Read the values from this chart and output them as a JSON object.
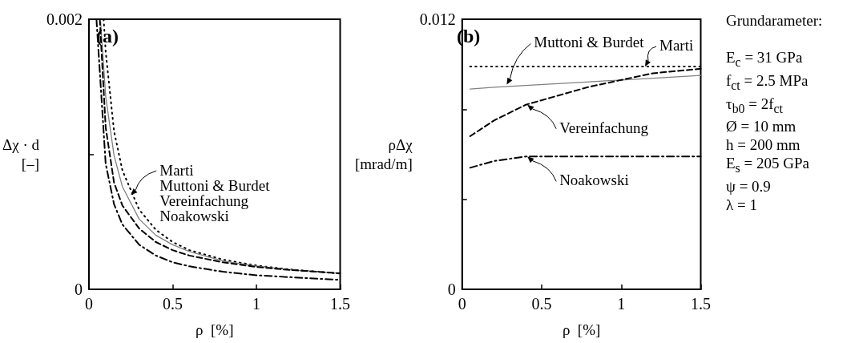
{
  "chart_data": [
    {
      "type": "line",
      "title": "(a)",
      "xlabel": "ρ  [%]",
      "ylabel": "Δχ · d\n[–]",
      "xlim": [
        0,
        1.5
      ],
      "xticks": [
        0,
        0.5,
        1,
        1.5
      ],
      "ylim": [
        0,
        0.002
      ],
      "yticks": [
        0,
        {
          "value": 0.001,
          "label": null
        },
        0.002
      ],
      "grid": false,
      "marker": "none",
      "series": [
        {
          "color": "#000000",
          "line_style": "dotted",
          "x": [
            0.088,
            0.1,
            0.15,
            0.2,
            0.3,
            0.4,
            0.5,
            0.6,
            0.8,
            1.0,
            1.2,
            1.5
          ],
          "values": [
            0.002,
            0.00176,
            0.00117,
            0.00088,
            0.00059,
            0.00044,
            0.00035,
            0.00029,
            0.00022,
            0.000176,
            0.000147,
            0.000117
          ]
        },
        {
          "color": "#808080",
          "line_style": "solid",
          "x": [
            0.07,
            0.1,
            0.15,
            0.2,
            0.3,
            0.4,
            0.5,
            0.6,
            0.8,
            1.0,
            1.2,
            1.5
          ],
          "values": [
            0.00198,
            0.00143,
            0.00099,
            0.00076,
            0.00052,
            0.0004,
            0.00033,
            0.00028,
            0.00021,
            0.000172,
            0.000145,
            0.000118
          ]
        },
        {
          "color": "#000000",
          "line_style": "dashed",
          "x": [
            0.065,
            0.1,
            0.15,
            0.2,
            0.3,
            0.4,
            0.5,
            0.6,
            0.8,
            1.0,
            1.2,
            1.5
          ],
          "values": [
            0.002,
            0.0012,
            0.00079,
            0.00062,
            0.00045,
            0.00035,
            0.00029,
            0.00025,
            0.0002,
            0.000166,
            0.000143,
            0.000119
          ]
        },
        {
          "color": "#000000",
          "line_style": "dashdot",
          "x": [
            0.045,
            0.1,
            0.15,
            0.2,
            0.3,
            0.4,
            0.5,
            0.6,
            0.8,
            1.0,
            1.2,
            1.5
          ],
          "values": [
            0.002,
            0.00093,
            0.00063,
            0.00048,
            0.00033,
            0.00025,
            0.0002,
            0.00017,
            0.00013,
            0.000104,
            9e-05,
            7e-05
          ]
        }
      ],
      "annotations": [
        {
          "text": "Marti\nMuttoni & Burdet\nVereinfachung\nNoakowski",
          "x": 0.25,
          "y": 0.0007
        }
      ]
    },
    {
      "type": "line",
      "title": "(b)",
      "xlabel": "ρ  [%]",
      "ylabel": "ρΔχ\n[mrad/m]",
      "xlim": [
        0,
        1.5
      ],
      "xticks": [
        0,
        0.5,
        1,
        1.5
      ],
      "ylim": [
        0,
        0.012
      ],
      "yticks": [
        0,
        {
          "value": 0.004,
          "label": null
        },
        {
          "value": 0.008,
          "label": null
        },
        0.012
      ],
      "grid": false,
      "marker": "none",
      "series": [
        {
          "color": "#000000",
          "line_style": "dotted",
          "x": [
            0.05,
            0.2,
            0.4,
            0.6,
            0.8,
            1.0,
            1.2,
            1.5
          ],
          "values": [
            0.0099,
            0.0099,
            0.0099,
            0.0099,
            0.0099,
            0.0099,
            0.0099,
            0.0099
          ]
        },
        {
          "color": "#808080",
          "line_style": "solid",
          "x": [
            0.05,
            0.2,
            0.4,
            0.6,
            0.8,
            1.0,
            1.2,
            1.5
          ],
          "values": [
            0.0089,
            0.00898,
            0.00906,
            0.00914,
            0.00922,
            0.0093,
            0.00938,
            0.0095
          ]
        },
        {
          "color": "#000000",
          "line_style": "dashed",
          "x": [
            0.05,
            0.2,
            0.4,
            0.6,
            0.8,
            1.0,
            1.2,
            1.5
          ],
          "values": [
            0.0068,
            0.0075,
            0.0082,
            0.0086,
            0.009,
            0.0093,
            0.0096,
            0.0098
          ]
        },
        {
          "color": "#000000",
          "line_style": "dashdot",
          "x": [
            0.05,
            0.2,
            0.4,
            0.6,
            0.8,
            1.0,
            1.2,
            1.5
          ],
          "values": [
            0.0054,
            0.0057,
            0.0059,
            0.0059,
            0.0059,
            0.0059,
            0.0059,
            0.0059
          ]
        }
      ],
      "annotations": [
        {
          "text": "Muttoni & Burdet",
          "x": 0.28,
          "y": 0.0091
        },
        {
          "text": "Marti",
          "x": 1.15,
          "y": 0.0099
        },
        {
          "text": "Vereinfachung",
          "x": 0.41,
          "y": 0.0082
        },
        {
          "text": "Noakowski",
          "x": 0.41,
          "y": 0.0059
        }
      ]
    },
    {
      "type": "other",
      "title": "Grundarameter:",
      "annotations": [
        "E$_{c}$ = 31 GPa",
        "f$_{ct}$ = 2.5 MPa",
        "τ$_{b0}$ = 2f$_{ct}$",
        "Ø = 10 mm",
        "h = 200 mm",
        "E$_{s}$ = 205 GPa",
        "ψ = 0.9",
        "λ = 1"
      ]
    }
  ]
}
